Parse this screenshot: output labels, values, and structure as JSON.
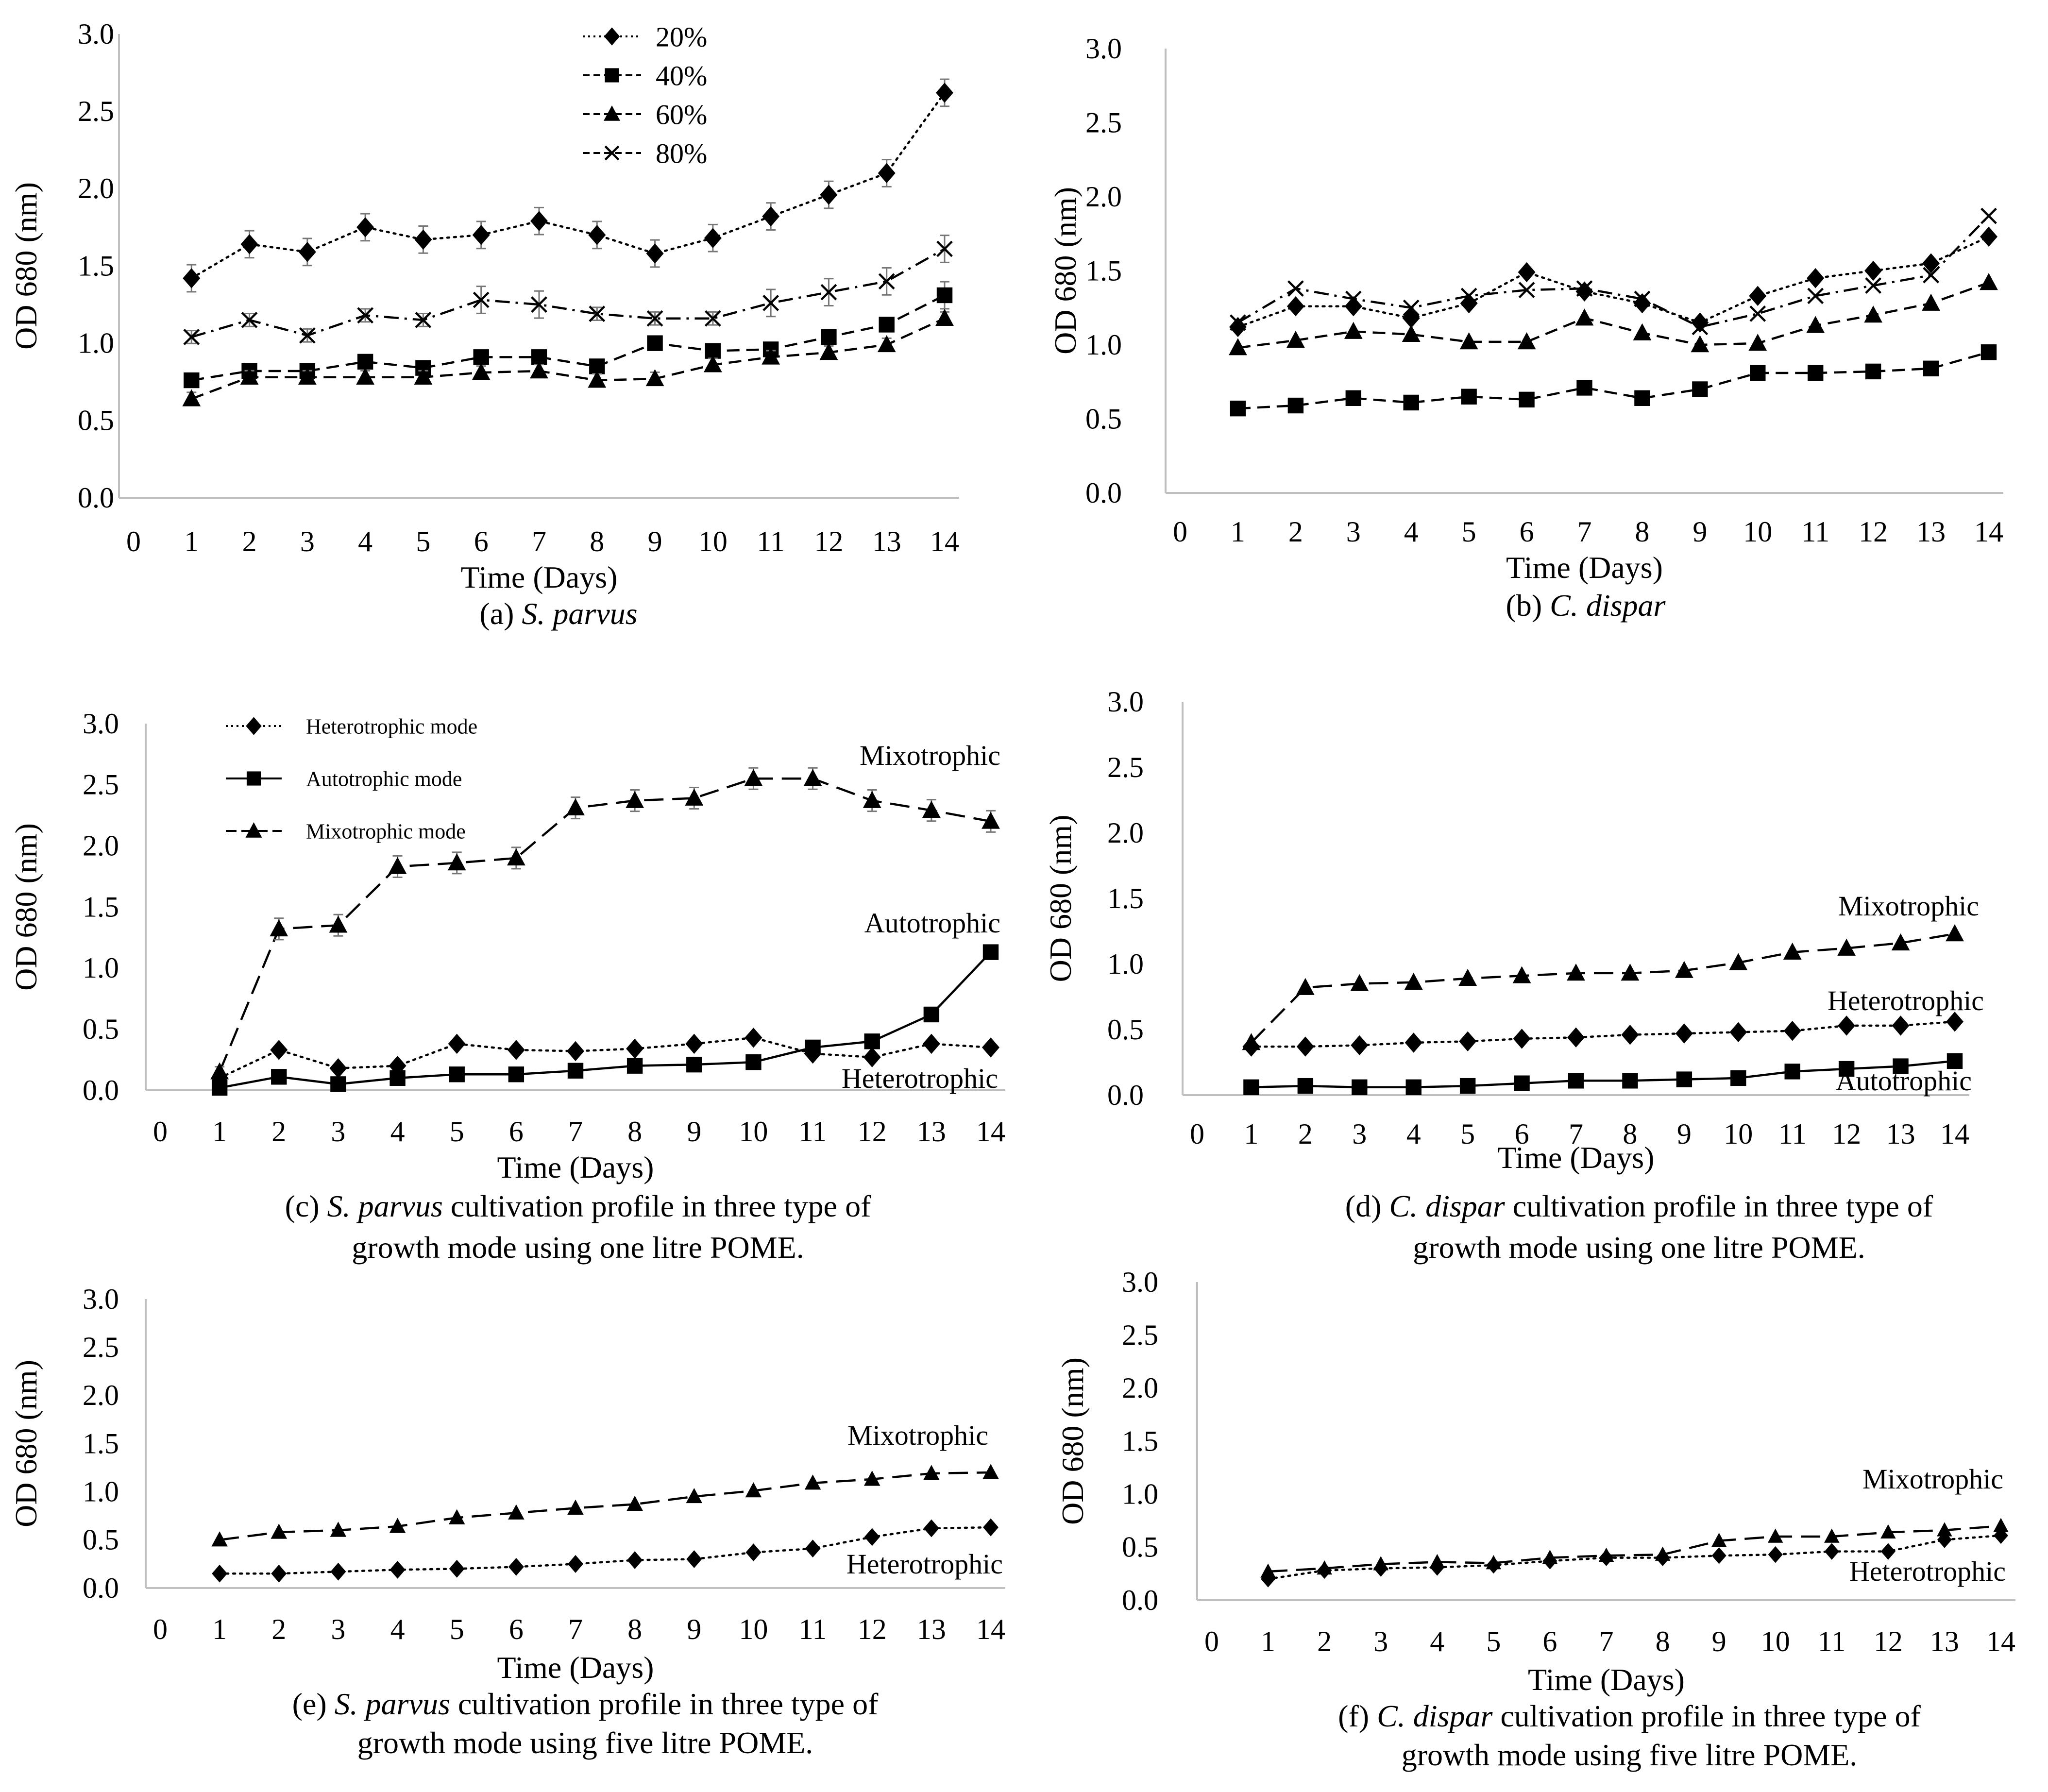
{
  "chart_data": [
    {
      "type": "line",
      "panel": "a",
      "caption_lines": [
        [
          {
            "t": "(a) "
          },
          {
            "t": "S. parvus",
            "i": true
          }
        ]
      ],
      "xlabel": "Time (Days)",
      "ylabel": "OD 680 (nm)",
      "ylim": [
        0,
        3
      ],
      "yticks": [
        "0.0",
        "0.5",
        "1.0",
        "1.5",
        "2.0",
        "2.5",
        "3.0"
      ],
      "xticks": [
        "0",
        "1",
        "2",
        "3",
        "4",
        "5",
        "6",
        "7",
        "8",
        "9",
        "10",
        "11",
        "12",
        "13",
        "14"
      ],
      "x": [
        1,
        2,
        3,
        4,
        5,
        6,
        7,
        8,
        9,
        10,
        11,
        12,
        13,
        14
      ],
      "legend_position": "top-center",
      "series": [
        {
          "name": "20%",
          "marker": "diamond",
          "dash": "dotted",
          "error_bars": true,
          "values": [
            1.42,
            1.64,
            1.59,
            1.75,
            1.67,
            1.7,
            1.79,
            1.7,
            1.58,
            1.68,
            1.82,
            1.96,
            2.1,
            2.62
          ]
        },
        {
          "name": "40%",
          "marker": "square",
          "dash": "dashed",
          "error_bars": true,
          "values": [
            0.76,
            0.82,
            0.82,
            0.88,
            0.84,
            0.91,
            0.91,
            0.85,
            1.0,
            0.95,
            0.96,
            1.04,
            1.12,
            1.31
          ]
        },
        {
          "name": "60%",
          "marker": "triangle",
          "dash": "dashed",
          "error_bars": true,
          "values": [
            0.64,
            0.78,
            0.78,
            0.78,
            0.78,
            0.81,
            0.82,
            0.76,
            0.77,
            0.86,
            0.91,
            0.94,
            0.99,
            1.16
          ]
        },
        {
          "name": "80%",
          "marker": "x",
          "dash": "dashdot",
          "error_bars": true,
          "values": [
            1.04,
            1.15,
            1.05,
            1.18,
            1.15,
            1.28,
            1.25,
            1.19,
            1.16,
            1.16,
            1.26,
            1.33,
            1.4,
            1.61
          ]
        }
      ]
    },
    {
      "type": "line",
      "panel": "b",
      "caption_lines": [
        [
          {
            "t": "(b) "
          },
          {
            "t": "C. dispar",
            "i": true
          }
        ]
      ],
      "xlabel": "Time (Days)",
      "ylabel": "OD 680 (nm)",
      "ylim": [
        0,
        3
      ],
      "yticks": [
        "0.0",
        "0.5",
        "1.0",
        "1.5",
        "2.0",
        "2.5",
        "3.0"
      ],
      "xticks": [
        "0",
        "1",
        "2",
        "3",
        "4",
        "5",
        "6",
        "7",
        "8",
        "9",
        "10",
        "11",
        "12",
        "13",
        "14"
      ],
      "x": [
        1,
        2,
        3,
        4,
        5,
        6,
        7,
        8,
        9,
        10,
        11,
        12,
        13,
        14
      ],
      "series": [
        {
          "marker": "diamond",
          "dash": "dotted",
          "values": [
            1.12,
            1.26,
            1.26,
            1.18,
            1.28,
            1.49,
            1.36,
            1.28,
            1.15,
            1.33,
            1.45,
            1.5,
            1.55,
            1.73
          ]
        },
        {
          "marker": "square",
          "dash": "dashed",
          "values": [
            0.57,
            0.59,
            0.64,
            0.61,
            0.65,
            0.63,
            0.71,
            0.64,
            0.7,
            0.81,
            0.81,
            0.82,
            0.84,
            0.95
          ]
        },
        {
          "marker": "triangle",
          "dash": "dashed",
          "values": [
            0.98,
            1.03,
            1.09,
            1.07,
            1.02,
            1.02,
            1.18,
            1.08,
            1.0,
            1.01,
            1.13,
            1.2,
            1.28,
            1.42
          ]
        },
        {
          "marker": "x",
          "dash": "dashdot",
          "values": [
            1.15,
            1.38,
            1.31,
            1.25,
            1.33,
            1.37,
            1.38,
            1.31,
            1.12,
            1.21,
            1.33,
            1.4,
            1.47,
            1.87
          ]
        }
      ]
    },
    {
      "type": "line",
      "panel": "c",
      "caption_lines": [
        [
          {
            "t": "(c) "
          },
          {
            "t": "S. parvus",
            "i": true
          },
          {
            "t": " cultivation profile in three type of"
          }
        ],
        [
          {
            "t": "growth mode using one litre POME."
          }
        ]
      ],
      "xlabel": "Time (Days)",
      "ylabel": "OD 680 (nm)",
      "ylim": [
        0,
        3
      ],
      "yticks": [
        "0.0",
        "0.5",
        "1.0",
        "1.5",
        "2.0",
        "2.5",
        "3.0"
      ],
      "xticks": [
        "0",
        "1",
        "2",
        "3",
        "4",
        "5",
        "6",
        "7",
        "8",
        "9",
        "10",
        "11",
        "12",
        "13",
        "14"
      ],
      "x": [
        1,
        2,
        3,
        4,
        5,
        6,
        7,
        8,
        9,
        10,
        11,
        12,
        13,
        14
      ],
      "legend_position": "top-left",
      "series": [
        {
          "name": "Heterotrophic mode",
          "marker": "diamond",
          "dash": "dotted",
          "values": [
            0.1,
            0.33,
            0.18,
            0.2,
            0.38,
            0.33,
            0.32,
            0.34,
            0.38,
            0.43,
            0.3,
            0.27,
            0.38,
            0.35
          ]
        },
        {
          "name": "Autotrophic mode",
          "marker": "square",
          "dash": "solid",
          "values": [
            0.02,
            0.11,
            0.05,
            0.1,
            0.13,
            0.13,
            0.16,
            0.2,
            0.21,
            0.23,
            0.35,
            0.4,
            0.62,
            1.13
          ]
        },
        {
          "name": "Mixotrophic mode",
          "marker": "triangle",
          "dash": "longdash",
          "error_bars": true,
          "values": [
            0.15,
            1.32,
            1.35,
            1.83,
            1.86,
            1.9,
            2.31,
            2.37,
            2.39,
            2.55,
            2.55,
            2.37,
            2.29,
            2.2
          ]
        }
      ],
      "annotations": [
        "Mixotrophic",
        "Autotrophic",
        "Heterotrophic"
      ]
    },
    {
      "type": "line",
      "panel": "d",
      "caption_lines": [
        [
          {
            "t": "(d) "
          },
          {
            "t": "C. dispar",
            "i": true
          },
          {
            "t": " cultivation profile in three type of"
          }
        ],
        [
          {
            "t": "growth mode using one litre POME."
          }
        ]
      ],
      "xlabel": "Time (Days)",
      "ylabel": "OD 680 (nm)",
      "ylim": [
        0,
        3
      ],
      "yticks": [
        "0.0",
        "0.5",
        "1.0",
        "1.5",
        "2.0",
        "2.5",
        "3.0"
      ],
      "xticks": [
        "0",
        "1",
        "2",
        "3",
        "4",
        "5",
        "6",
        "7",
        "8",
        "9",
        "10",
        "11",
        "12",
        "13",
        "14"
      ],
      "x": [
        1,
        2,
        3,
        4,
        5,
        6,
        7,
        8,
        9,
        10,
        11,
        12,
        13,
        14
      ],
      "series": [
        {
          "marker": "diamond",
          "dash": "dotted",
          "values": [
            0.37,
            0.37,
            0.38,
            0.4,
            0.41,
            0.43,
            0.44,
            0.46,
            0.47,
            0.48,
            0.49,
            0.53,
            0.53,
            0.56
          ]
        },
        {
          "marker": "square",
          "dash": "solid",
          "values": [
            0.06,
            0.07,
            0.06,
            0.06,
            0.07,
            0.09,
            0.11,
            0.11,
            0.12,
            0.13,
            0.18,
            0.2,
            0.22,
            0.26
          ]
        },
        {
          "marker": "triangle",
          "dash": "longdash",
          "values": [
            0.4,
            0.82,
            0.85,
            0.86,
            0.89,
            0.91,
            0.93,
            0.93,
            0.95,
            1.01,
            1.09,
            1.12,
            1.16,
            1.23
          ]
        }
      ],
      "annotations": [
        "Mixotrophic",
        "Heterotrophic",
        "Autotrophic"
      ]
    },
    {
      "type": "line",
      "panel": "e",
      "caption_lines": [
        [
          {
            "t": "(e) "
          },
          {
            "t": "S. parvus",
            "i": true
          },
          {
            "t": " cultivation profile in three type of"
          }
        ],
        [
          {
            "t": "growth mode using five litre POME."
          }
        ]
      ],
      "xlabel": "Time (Days)",
      "ylabel": "OD 680 (nm)",
      "ylim": [
        0,
        3
      ],
      "yticks": [
        "0.0",
        "0.5",
        "1.0",
        "1.5",
        "2.0",
        "2.5",
        "3.0"
      ],
      "xticks": [
        "0",
        "1",
        "2",
        "3",
        "4",
        "5",
        "6",
        "7",
        "8",
        "9",
        "10",
        "11",
        "12",
        "13",
        "14"
      ],
      "x": [
        1,
        2,
        3,
        4,
        5,
        6,
        7,
        8,
        9,
        10,
        11,
        12,
        13,
        14
      ],
      "series": [
        {
          "marker": "diamond",
          "dash": "dotted",
          "values": [
            0.15,
            0.15,
            0.17,
            0.19,
            0.2,
            0.22,
            0.25,
            0.29,
            0.3,
            0.37,
            0.41,
            0.53,
            0.62,
            0.63
          ]
        },
        {
          "marker": "triangle",
          "dash": "longdash",
          "values": [
            0.5,
            0.58,
            0.6,
            0.64,
            0.73,
            0.78,
            0.83,
            0.87,
            0.95,
            1.01,
            1.09,
            1.13,
            1.19,
            1.2
          ]
        }
      ],
      "annotations": [
        "Mixotrophic",
        "Heterotrophic"
      ]
    },
    {
      "type": "line",
      "panel": "f",
      "caption_lines": [
        [
          {
            "t": "(f) "
          },
          {
            "t": "C. dispar",
            "i": true
          },
          {
            "t": " cultivation profile in three type of"
          }
        ],
        [
          {
            "t": "growth mode using five litre POME."
          }
        ]
      ],
      "xlabel": "Time (Days)",
      "ylabel": "OD 680 (nm)",
      "ylim": [
        0,
        3
      ],
      "yticks": [
        "0.0",
        "0.5",
        "1.0",
        "1.5",
        "2.0",
        "2.5",
        "3.0"
      ],
      "xticks": [
        "0",
        "1",
        "2",
        "3",
        "4",
        "5",
        "6",
        "7",
        "8",
        "9",
        "10",
        "11",
        "12",
        "13",
        "14"
      ],
      "x": [
        1,
        2,
        3,
        4,
        5,
        6,
        7,
        8,
        9,
        10,
        11,
        12,
        13,
        14
      ],
      "series": [
        {
          "marker": "diamond",
          "dash": "dotted",
          "values": [
            0.2,
            0.28,
            0.3,
            0.31,
            0.33,
            0.37,
            0.4,
            0.4,
            0.42,
            0.43,
            0.46,
            0.46,
            0.57,
            0.61
          ]
        },
        {
          "marker": "triangle",
          "dash": "longdash",
          "values": [
            0.27,
            0.3,
            0.34,
            0.36,
            0.35,
            0.4,
            0.42,
            0.43,
            0.56,
            0.6,
            0.6,
            0.64,
            0.66,
            0.7
          ]
        }
      ],
      "annotations": [
        "Mixotrophic",
        "Heterotrophic"
      ]
    }
  ]
}
